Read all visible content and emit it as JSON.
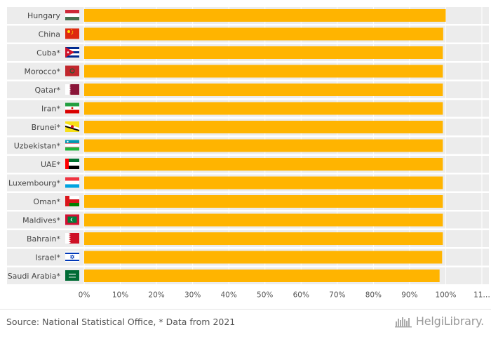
{
  "chart_data": {
    "type": "bar",
    "orientation": "horizontal",
    "categories": [
      "Hungary",
      "China",
      "Cuba*",
      "Morocco*",
      "Qatar*",
      "Iran*",
      "Brunei*",
      "Uzbekistan*",
      "UAE*",
      "Luxembourg*",
      "Oman*",
      "Maldives*",
      "Bahrain*",
      "Israel*",
      "Saudi Arabia*"
    ],
    "values": [
      100,
      99.3,
      99.2,
      99.2,
      99.2,
      99.2,
      99.2,
      99.2,
      99.2,
      99.2,
      99.2,
      99.2,
      99.2,
      99.0,
      98.3
    ],
    "xticks": [
      "0%",
      "10%",
      "20%",
      "30%",
      "40%",
      "50%",
      "60%",
      "70%",
      "80%",
      "90%",
      "100%",
      "11…"
    ],
    "xlim": [
      0,
      110
    ],
    "grid": true,
    "bar_color": "#FFB400",
    "flags": [
      "hungary-flag",
      "china-flag",
      "cuba-flag",
      "morocco-flag",
      "qatar-flag",
      "iran-flag",
      "brunei-flag",
      "uzbekistan-flag",
      "uae-flag",
      "luxembourg-flag",
      "oman-flag",
      "maldives-flag",
      "bahrain-flag",
      "israel-flag",
      "saudi-arabia-flag"
    ]
  },
  "footer": {
    "source": "Source: National Statistical Office, * Data from 2021",
    "brand": "HelgiLibrary."
  },
  "colors": {
    "bar": "#FFB400",
    "row_band": "#ECECEC",
    "grid": "#E8E8E8",
    "text": "#444444"
  }
}
